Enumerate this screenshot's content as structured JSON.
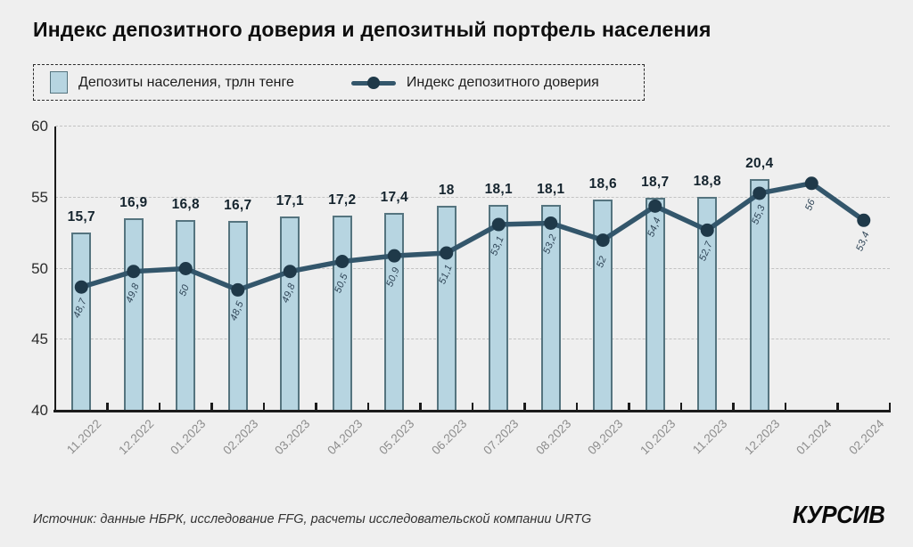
{
  "title": "Индекс депозитного доверия и депозитный портфель населения",
  "legend": {
    "bar_label": "Депозиты населения, трлн тенге",
    "line_label": "Индекс депозитного доверия"
  },
  "footer": {
    "source": "Источник: данные НБРК, исследование FFG, расчеты исследовательской компании URTG",
    "logo": "КУРСИВ"
  },
  "colors": {
    "background": "#efefef",
    "bar_fill": "#b7d5e1",
    "bar_border": "#55747f",
    "line": "#33566b",
    "marker": "#1f3949",
    "grid": "#c2c2c2",
    "axis": "#1b1b1b",
    "x_label": "#8c8c8c",
    "bar_value_label": "#15242e",
    "point_value_label": "#2e4456"
  },
  "chart_data": {
    "type": "bar",
    "subtype": "bar-line-combo",
    "categories": [
      "11.2022",
      "12.2022",
      "01.2023",
      "02.2023",
      "03.2023",
      "04.2023",
      "05.2023",
      "06.2023",
      "07.2023",
      "08.2023",
      "09.2023",
      "10.2023",
      "11.2023",
      "12.2023",
      "01.2024",
      "02.2024"
    ],
    "series": [
      {
        "name": "Депозиты населения, трлн тенге",
        "type": "bar",
        "values": [
          15.7,
          16.9,
          16.8,
          16.7,
          17.1,
          17.2,
          17.4,
          18,
          18.1,
          18.1,
          18.6,
          18.7,
          18.8,
          20.4,
          null,
          null
        ],
        "labels": [
          "15,7",
          "16,9",
          "16,8",
          "16,7",
          "17,1",
          "17,2",
          "17,4",
          "18",
          "18,1",
          "18,1",
          "18,6",
          "18,7",
          "18,8",
          "20,4",
          null,
          null
        ],
        "axis": "secondary",
        "secondary_axis_range": [
          0,
          25
        ]
      },
      {
        "name": "Индекс депозитного доверия",
        "type": "line",
        "values": [
          48.7,
          49.8,
          50,
          48.5,
          49.8,
          50.5,
          50.9,
          51.1,
          53.1,
          53.2,
          52,
          54.4,
          52.7,
          55.3,
          56,
          53.4
        ],
        "labels": [
          "48,7",
          "49,8",
          "50",
          "48,5",
          "49,8",
          "50,5",
          "50,9",
          "51,1",
          "53,1",
          "53,2",
          "52",
          "54,4",
          "52,7",
          "55,3",
          "56",
          "53,4"
        ],
        "axis": "primary"
      }
    ],
    "title": "Индекс депозитного доверия и депозитный портфель населения",
    "xlabel": "",
    "ylabel": "",
    "ylim": [
      40,
      60
    ],
    "yticks": [
      40,
      45,
      50,
      55,
      60
    ],
    "grid": "horizontal-dashed",
    "legend_position": "top"
  }
}
